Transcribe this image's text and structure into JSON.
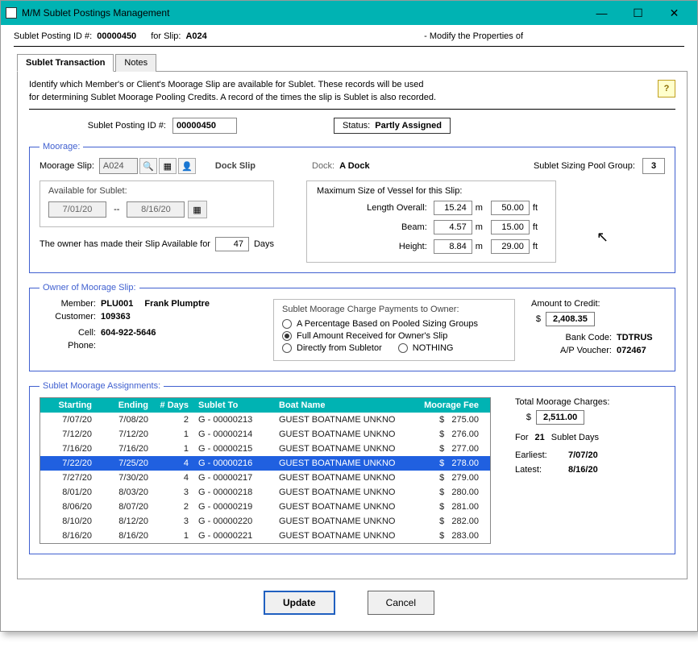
{
  "window": {
    "title": "M/M Sublet Postings Management",
    "minimize": "—",
    "maximize": "☐",
    "close": "✕"
  },
  "header": {
    "id_label": "Sublet Posting ID #:",
    "id_value": "00000450",
    "slip_label": "for Slip:",
    "slip_value": "A024",
    "modify_text": "- Modify the Properties of"
  },
  "tabs": {
    "transaction": "Sublet Transaction",
    "notes": "Notes"
  },
  "intro": {
    "line1": "Identify which Member's or Client's Moorage Slip are available for Sublet.  These records will be used",
    "line2": "for determining Sublet Moorage Pooling Credits.  A record of the times the slip is Sublet is also recorded.",
    "help": "?"
  },
  "status_row": {
    "id_label": "Sublet Posting ID #:",
    "id_value": "00000450",
    "status_label": "Status:",
    "status_value": "Partly Assigned"
  },
  "moorage": {
    "legend": "Moorage:",
    "slip_label": "Moorage Slip:",
    "slip_value": "A024",
    "dockslip_label": "Dock Slip",
    "dock_label": "Dock:",
    "dock_value": "A Dock",
    "pool_label": "Sublet Sizing Pool Group:",
    "pool_value": "3",
    "avail_title": "Available for Sublet:",
    "date_from": "7/01/20",
    "date_sep": "--",
    "date_to": "8/16/20",
    "avail_for_label": "The owner has made their Slip Available for",
    "avail_days": "47",
    "days_label": "Days",
    "max_title": "Maximum Size of Vessel for this Slip:",
    "loa_label": "Length Overall:",
    "loa_m": "15.24",
    "loa_ft": "50.00",
    "beam_label": "Beam:",
    "beam_m": "4.57",
    "beam_ft": "15.00",
    "height_label": "Height:",
    "height_m": "8.84",
    "height_ft": "29.00",
    "unit_m": "m",
    "unit_ft": "ft"
  },
  "owner": {
    "legend": "Owner of Moorage Slip:",
    "member_label": "Member:",
    "member_code": "PLU001",
    "member_name": "Frank Plumptre",
    "customer_label": "Customer:",
    "customer_value": "109363",
    "cell_label": "Cell:",
    "cell_value": "604-922-5646",
    "phone_label": "Phone:",
    "phone_value": "",
    "payments_title": "Sublet Moorage Charge Payments to Owner:",
    "opt_percentage": "A Percentage Based on Pooled Sizing Groups",
    "opt_full": "Full Amount Received for Owner's Slip",
    "opt_direct": "Directly from Subletor",
    "opt_nothing": "NOTHING",
    "credit_label": "Amount to Credit:",
    "credit_currency": "$",
    "credit_value": "2,408.35",
    "bank_label": "Bank Code:",
    "bank_value": "TDTRUS",
    "voucher_label": "A/P Voucher:",
    "voucher_value": "072467"
  },
  "assignments": {
    "legend": "Sublet Moorage Assignments:",
    "columns": {
      "start": "Starting",
      "end": "Ending",
      "days": "# Days",
      "subletto": "Sublet To",
      "boat": "Boat Name",
      "fee": "Moorage Fee"
    },
    "rows": [
      {
        "start": "7/07/20",
        "end": "7/08/20",
        "days": "2",
        "sub": "G - 00000213",
        "boat": "GUEST BOATNAME UNKNO",
        "cur": "$",
        "fee": "275.00",
        "sel": false
      },
      {
        "start": "7/12/20",
        "end": "7/12/20",
        "days": "1",
        "sub": "G - 00000214",
        "boat": "GUEST BOATNAME UNKNO",
        "cur": "$",
        "fee": "276.00",
        "sel": false
      },
      {
        "start": "7/16/20",
        "end": "7/16/20",
        "days": "1",
        "sub": "G - 00000215",
        "boat": "GUEST BOATNAME UNKNO",
        "cur": "$",
        "fee": "277.00",
        "sel": false
      },
      {
        "start": "7/22/20",
        "end": "7/25/20",
        "days": "4",
        "sub": "G - 00000216",
        "boat": "GUEST BOATNAME UNKNO",
        "cur": "$",
        "fee": "278.00",
        "sel": true
      },
      {
        "start": "7/27/20",
        "end": "7/30/20",
        "days": "4",
        "sub": "G - 00000217",
        "boat": "GUEST BOATNAME UNKNO",
        "cur": "$",
        "fee": "279.00",
        "sel": false
      },
      {
        "start": "8/01/20",
        "end": "8/03/20",
        "days": "3",
        "sub": "G - 00000218",
        "boat": "GUEST BOATNAME UNKNO",
        "cur": "$",
        "fee": "280.00",
        "sel": false
      },
      {
        "start": "8/06/20",
        "end": "8/07/20",
        "days": "2",
        "sub": "G - 00000219",
        "boat": "GUEST BOATNAME UNKNO",
        "cur": "$",
        "fee": "281.00",
        "sel": false
      },
      {
        "start": "8/10/20",
        "end": "8/12/20",
        "days": "3",
        "sub": "G - 00000220",
        "boat": "GUEST BOATNAME UNKNO",
        "cur": "$",
        "fee": "282.00",
        "sel": false
      },
      {
        "start": "8/16/20",
        "end": "8/16/20",
        "days": "1",
        "sub": "G - 00000221",
        "boat": "GUEST BOATNAME UNKNO",
        "cur": "$",
        "fee": "283.00",
        "sel": false
      }
    ],
    "total_label": "Total Moorage Charges:",
    "total_currency": "$",
    "total_value": "2,511.00",
    "for_label": "For",
    "for_days": "21",
    "for_days_label": "Sublet Days",
    "earliest_label": "Earliest:",
    "earliest_value": "7/07/20",
    "latest_label": "Latest:",
    "latest_value": "8/16/20"
  },
  "buttons": {
    "update": "Update",
    "cancel": "Cancel"
  },
  "icons": {
    "search": "🔍",
    "grid": "▦",
    "person": "👤",
    "calendar": "▦"
  }
}
